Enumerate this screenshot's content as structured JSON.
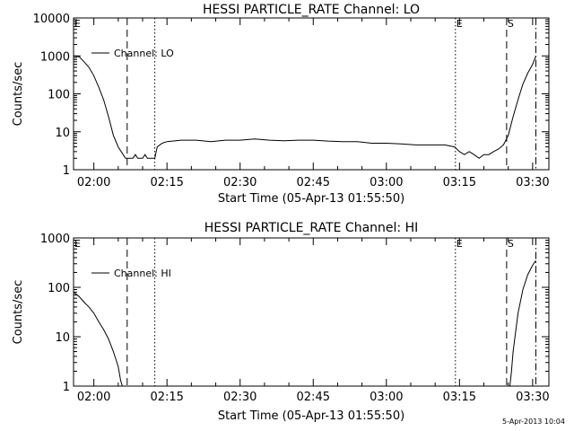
{
  "chart_data": [
    {
      "type": "line",
      "title": "HESSI PARTICLE_RATE Channel: LO",
      "xlabel": "Start Time (05-Apr-13 01:55:50)",
      "ylabel": "Counts/sec",
      "yscale": "log",
      "ylim": [
        1,
        10000
      ],
      "xlim": [
        "01:55:50",
        "03:33:20"
      ],
      "x_ticks": [
        "02:00",
        "02:15",
        "02:30",
        "02:45",
        "03:00",
        "03:15",
        "03:30"
      ],
      "y_ticks": [
        "1",
        "10",
        "100",
        "1000",
        "10000"
      ],
      "legend": {
        "position": "top-left",
        "entries": [
          "Channel: LO"
        ]
      },
      "markers": [
        {
          "label": "E",
          "time": "01:55:50",
          "style": "solid"
        },
        {
          "label": "",
          "time": "02:06:50",
          "style": "dashed"
        },
        {
          "label": "",
          "time": "02:12:30",
          "style": "dotted"
        },
        {
          "label": "E",
          "time": "03:14:10",
          "style": "dotted"
        },
        {
          "label": "S",
          "time": "03:24:40",
          "style": "dashed"
        },
        {
          "label": "",
          "time": "03:30:40",
          "style": "dash-dot"
        }
      ],
      "series": [
        {
          "name": "Channel: LO",
          "points": [
            [
              "01:55:50",
              1000
            ],
            [
              "01:57:00",
              950
            ],
            [
              "01:58:00",
              700
            ],
            [
              "01:59:00",
              500
            ],
            [
              "02:00:00",
              300
            ],
            [
              "02:01:00",
              150
            ],
            [
              "02:02:00",
              70
            ],
            [
              "02:03:00",
              25
            ],
            [
              "02:04:00",
              8
            ],
            [
              "02:05:00",
              4
            ],
            [
              "02:06:00",
              2.5
            ],
            [
              "02:06:30",
              2
            ],
            [
              "02:07:00",
              2
            ],
            [
              "02:08:00",
              2
            ],
            [
              "02:08:30",
              2.5
            ],
            [
              "02:09:00",
              2
            ],
            [
              "02:10:00",
              2
            ],
            [
              "02:10:30",
              2.5
            ],
            [
              "02:11:00",
              2
            ],
            [
              "02:12:30",
              2
            ],
            [
              "02:13:00",
              4
            ],
            [
              "02:14:00",
              5
            ],
            [
              "02:15:00",
              5.5
            ],
            [
              "02:18:00",
              6
            ],
            [
              "02:21:00",
              6
            ],
            [
              "02:24:00",
              5.5
            ],
            [
              "02:27:00",
              6
            ],
            [
              "02:30:00",
              6
            ],
            [
              "02:33:00",
              6.5
            ],
            [
              "02:36:00",
              6
            ],
            [
              "02:39:00",
              5.8
            ],
            [
              "02:42:00",
              6
            ],
            [
              "02:45:00",
              6
            ],
            [
              "02:48:00",
              5.7
            ],
            [
              "02:51:00",
              5.5
            ],
            [
              "02:54:00",
              5.5
            ],
            [
              "02:57:00",
              5
            ],
            [
              "03:00:00",
              5
            ],
            [
              "03:03:00",
              4.8
            ],
            [
              "03:06:00",
              4.5
            ],
            [
              "03:09:00",
              4.5
            ],
            [
              "03:12:00",
              4.5
            ],
            [
              "03:14:00",
              4
            ],
            [
              "03:15:00",
              3
            ],
            [
              "03:16:00",
              2.5
            ],
            [
              "03:17:00",
              3
            ],
            [
              "03:18:00",
              2.5
            ],
            [
              "03:19:00",
              2
            ],
            [
              "03:20:00",
              2.5
            ],
            [
              "03:21:00",
              2.5
            ],
            [
              "03:22:00",
              3
            ],
            [
              "03:23:00",
              3.5
            ],
            [
              "03:24:00",
              4.5
            ],
            [
              "03:25:00",
              8
            ],
            [
              "03:26:00",
              25
            ],
            [
              "03:27:00",
              70
            ],
            [
              "03:28:00",
              180
            ],
            [
              "03:29:00",
              350
            ],
            [
              "03:30:00",
              600
            ],
            [
              "03:30:40",
              1000
            ]
          ]
        }
      ]
    },
    {
      "type": "line",
      "title": "HESSI PARTICLE_RATE Channel: HI",
      "xlabel": "Start Time (05-Apr-13 01:55:50)",
      "ylabel": "Counts/sec",
      "yscale": "log",
      "ylim": [
        1,
        1000
      ],
      "xlim": [
        "01:55:50",
        "03:33:20"
      ],
      "x_ticks": [
        "02:00",
        "02:15",
        "02:30",
        "02:45",
        "03:00",
        "03:15",
        "03:30"
      ],
      "y_ticks": [
        "1",
        "10",
        "100",
        "1000"
      ],
      "legend": {
        "position": "top-left",
        "entries": [
          "Channel: HI"
        ]
      },
      "markers": [
        {
          "label": "E",
          "time": "01:55:50",
          "style": "solid"
        },
        {
          "label": "",
          "time": "02:06:50",
          "style": "dashed"
        },
        {
          "label": "",
          "time": "02:12:30",
          "style": "dotted"
        },
        {
          "label": "E",
          "time": "03:14:10",
          "style": "dotted"
        },
        {
          "label": "S",
          "time": "03:24:40",
          "style": "dashed"
        },
        {
          "label": "",
          "time": "03:30:40",
          "style": "dash-dot"
        }
      ],
      "series": [
        {
          "name": "Channel: HI",
          "points": [
            [
              "01:55:50",
              80
            ],
            [
              "01:57:00",
              65
            ],
            [
              "01:58:00",
              50
            ],
            [
              "01:59:00",
              40
            ],
            [
              "02:00:00",
              30
            ],
            [
              "02:01:00",
              20
            ],
            [
              "02:02:00",
              14
            ],
            [
              "02:03:00",
              9
            ],
            [
              "02:04:00",
              5
            ],
            [
              "02:05:00",
              2.5
            ],
            [
              "02:05:30",
              1.3
            ],
            [
              "02:05:50",
              1
            ]
          ]
        },
        {
          "name": "Channel: HI",
          "points": [
            [
              "03:25:20",
              1
            ],
            [
              "03:25:40",
              2
            ],
            [
              "03:26:00",
              5
            ],
            [
              "03:27:00",
              30
            ],
            [
              "03:28:00",
              90
            ],
            [
              "03:29:00",
              180
            ],
            [
              "03:30:00",
              280
            ],
            [
              "03:30:40",
              350
            ]
          ]
        }
      ]
    }
  ],
  "footer": {
    "timestamp": "5-Apr-2013 10:04"
  }
}
